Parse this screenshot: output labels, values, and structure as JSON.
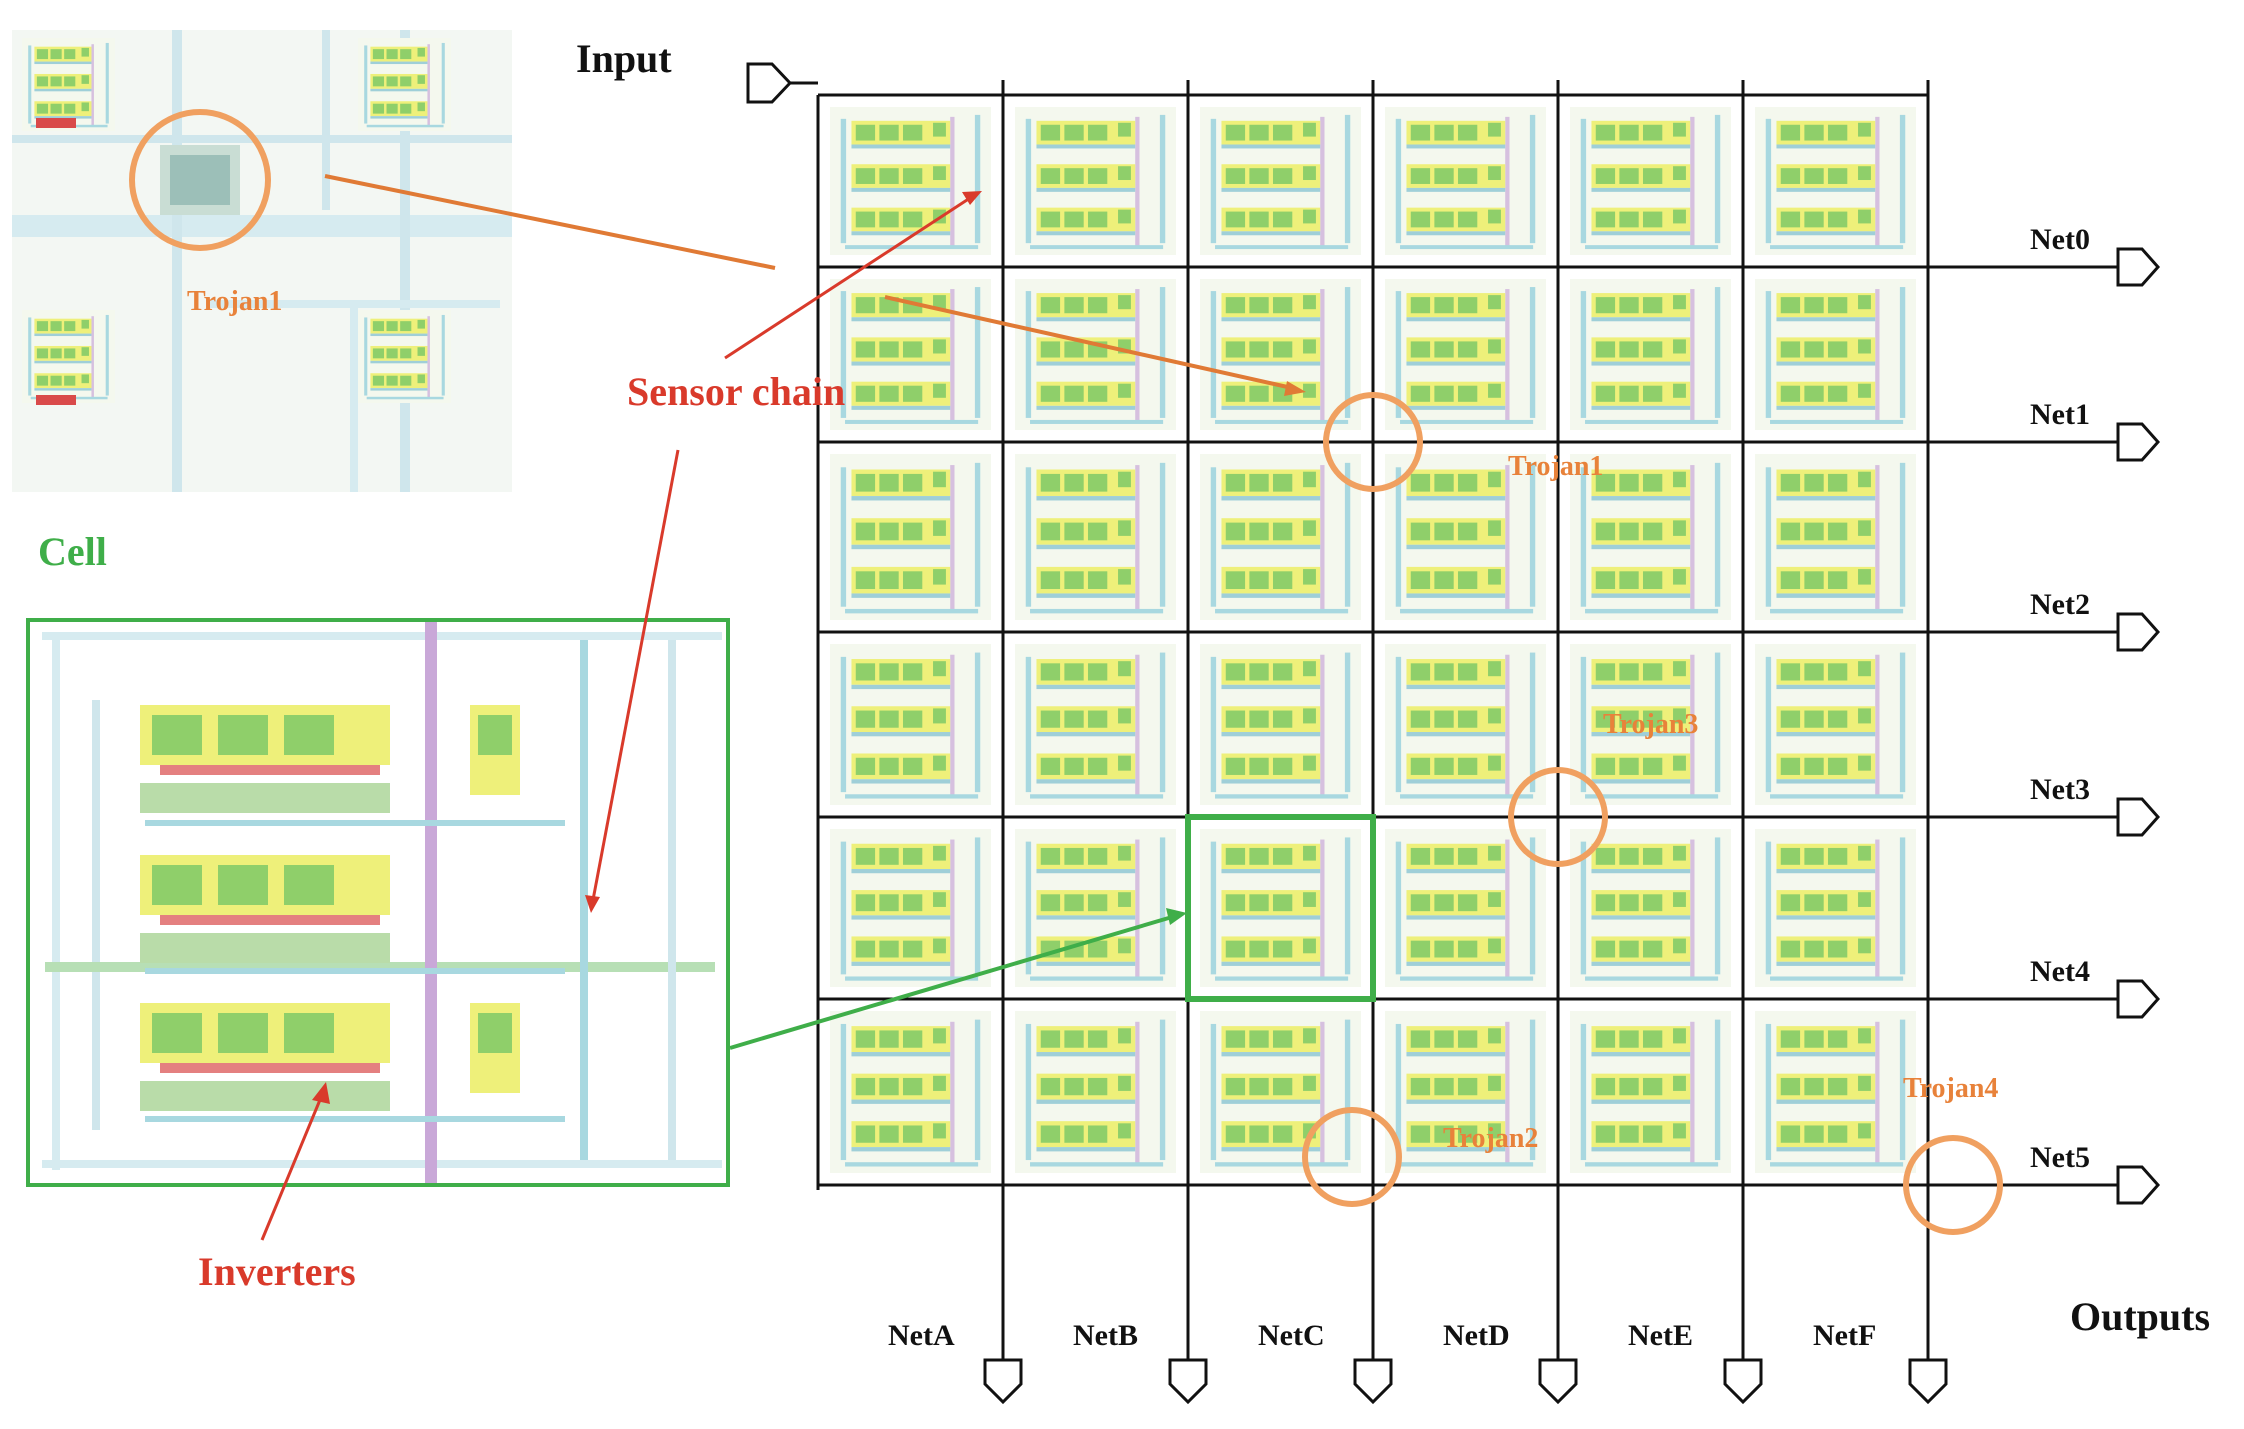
{
  "labels": {
    "input": "Input",
    "outputs": "Outputs",
    "cell": "Cell",
    "sensor_chain": "Sensor chain",
    "inverters": "Inverters",
    "inset_trojan": "Trojan1"
  },
  "output_nets_right": [
    "Net0",
    "Net1",
    "Net2",
    "Net3",
    "Net4",
    "Net5"
  ],
  "output_nets_bottom": [
    "NetA",
    "NetB",
    "NetC",
    "NetD",
    "NetE",
    "NetF"
  ],
  "trojans": [
    {
      "label": "Trojan1"
    },
    {
      "label": "Trojan3"
    },
    {
      "label": "Trojan2"
    },
    {
      "label": "Trojan4"
    }
  ],
  "colors": {
    "grid_line": "#111111",
    "trojan": "#f0a060",
    "trojan_text": "#e8823a",
    "red_label": "#d93a2b",
    "green": "#3fae49",
    "cell_fill": "#dcebc0",
    "cell_yellow": "#eef07a",
    "cell_green": "#8fcf6a",
    "wire_cyan": "#a8d8e0",
    "wire_purple": "#c9a8d8",
    "arrow_orange": "#e07a35"
  }
}
